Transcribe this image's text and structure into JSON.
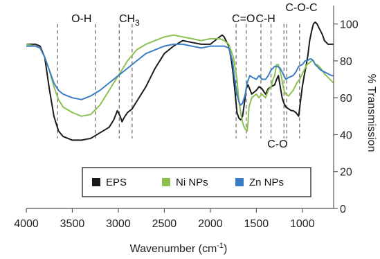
{
  "chart_data": {
    "type": "line",
    "xlabel": {
      "base": "Wavenumber (cm",
      "sup": "-1",
      "close": ")"
    },
    "ylabel": "% Transmission",
    "xlim": [
      4000,
      660
    ],
    "ylim": [
      0,
      110
    ],
    "x_ticks": [
      4000,
      3500,
      3000,
      2500,
      2000,
      1500,
      1000
    ],
    "y_ticks": [
      0,
      20,
      40,
      60,
      80,
      100
    ],
    "grid": false,
    "legend_position": "bottom-center",
    "annotations": [
      {
        "text": "O-H",
        "x": 3400,
        "y": 101
      },
      {
        "text": "CH",
        "sub": "3",
        "x": 2880,
        "y": 101
      },
      {
        "text": "C=O",
        "x": 1640,
        "y": 101
      },
      {
        "text": "C-H",
        "x": 1400,
        "y": 101
      },
      {
        "text": "C-O-C",
        "x": 1010,
        "y": 107
      },
      {
        "text": "C-O",
        "x": 1270,
        "y": 33
      }
    ],
    "vlines": [
      3660,
      3250,
      2990,
      2850,
      1720,
      1610,
      1450,
      1340,
      1200,
      1170,
      1030
    ],
    "series": [
      {
        "name": "EPS",
        "color": "#1a1a1a",
        "points": [
          [
            4000,
            89
          ],
          [
            3900,
            89
          ],
          [
            3850,
            88
          ],
          [
            3800,
            82
          ],
          [
            3750,
            65
          ],
          [
            3700,
            50
          ],
          [
            3650,
            42
          ],
          [
            3600,
            39
          ],
          [
            3500,
            37
          ],
          [
            3400,
            37
          ],
          [
            3300,
            38
          ],
          [
            3200,
            41
          ],
          [
            3100,
            44
          ],
          [
            3050,
            48
          ],
          [
            3010,
            53
          ],
          [
            2980,
            50
          ],
          [
            2960,
            47
          ],
          [
            2940,
            49
          ],
          [
            2900,
            52
          ],
          [
            2850,
            54
          ],
          [
            2800,
            58
          ],
          [
            2700,
            66
          ],
          [
            2600,
            76
          ],
          [
            2500,
            84
          ],
          [
            2400,
            88
          ],
          [
            2300,
            91
          ],
          [
            2200,
            90
          ],
          [
            2100,
            89
          ],
          [
            2000,
            89
          ],
          [
            1950,
            91
          ],
          [
            1900,
            93
          ],
          [
            1870,
            94
          ],
          [
            1850,
            93
          ],
          [
            1800,
            88
          ],
          [
            1770,
            80
          ],
          [
            1750,
            72
          ],
          [
            1730,
            62
          ],
          [
            1710,
            52
          ],
          [
            1690,
            49
          ],
          [
            1670,
            48
          ],
          [
            1650,
            50
          ],
          [
            1630,
            57
          ],
          [
            1610,
            65
          ],
          [
            1590,
            67
          ],
          [
            1550,
            62
          ],
          [
            1500,
            64
          ],
          [
            1470,
            66
          ],
          [
            1440,
            65
          ],
          [
            1400,
            62
          ],
          [
            1370,
            65
          ],
          [
            1340,
            66
          ],
          [
            1300,
            67
          ],
          [
            1280,
            70
          ],
          [
            1260,
            72
          ],
          [
            1240,
            66
          ],
          [
            1220,
            60
          ],
          [
            1200,
            57
          ],
          [
            1180,
            55
          ],
          [
            1150,
            54
          ],
          [
            1120,
            53
          ],
          [
            1100,
            53
          ],
          [
            1070,
            52
          ],
          [
            1040,
            50
          ],
          [
            1020,
            58
          ],
          [
            1000,
            66
          ],
          [
            980,
            72
          ],
          [
            960,
            77
          ],
          [
            940,
            83
          ],
          [
            920,
            91
          ],
          [
            900,
            96
          ],
          [
            880,
            100
          ],
          [
            860,
            101
          ],
          [
            840,
            100
          ],
          [
            820,
            98
          ],
          [
            800,
            96
          ],
          [
            780,
            94
          ],
          [
            760,
            91
          ],
          [
            740,
            90
          ],
          [
            720,
            89
          ],
          [
            700,
            89
          ],
          [
            680,
            89
          ],
          [
            660,
            89
          ]
        ]
      },
      {
        "name": "Ni NPs",
        "color": "#8cc152",
        "points": [
          [
            4000,
            89
          ],
          [
            3900,
            88
          ],
          [
            3850,
            87
          ],
          [
            3800,
            82
          ],
          [
            3750,
            75
          ],
          [
            3700,
            66
          ],
          [
            3650,
            59
          ],
          [
            3600,
            55
          ],
          [
            3500,
            52
          ],
          [
            3400,
            50
          ],
          [
            3300,
            51
          ],
          [
            3200,
            56
          ],
          [
            3100,
            64
          ],
          [
            3000,
            72
          ],
          [
            2950,
            76
          ],
          [
            2900,
            80
          ],
          [
            2800,
            86
          ],
          [
            2700,
            89
          ],
          [
            2600,
            91
          ],
          [
            2500,
            93
          ],
          [
            2400,
            94
          ],
          [
            2300,
            93
          ],
          [
            2200,
            92
          ],
          [
            2100,
            91
          ],
          [
            2000,
            92
          ],
          [
            1900,
            92
          ],
          [
            1850,
            91
          ],
          [
            1800,
            89
          ],
          [
            1750,
            82
          ],
          [
            1710,
            70
          ],
          [
            1690,
            58
          ],
          [
            1660,
            49
          ],
          [
            1640,
            45
          ],
          [
            1620,
            43
          ],
          [
            1600,
            42
          ],
          [
            1590,
            47
          ],
          [
            1580,
            55
          ],
          [
            1550,
            60
          ],
          [
            1500,
            62
          ],
          [
            1470,
            60
          ],
          [
            1440,
            62
          ],
          [
            1400,
            60
          ],
          [
            1370,
            64
          ],
          [
            1340,
            66
          ],
          [
            1320,
            70
          ],
          [
            1300,
            72
          ],
          [
            1280,
            78
          ],
          [
            1260,
            78
          ],
          [
            1240,
            74
          ],
          [
            1230,
            72
          ],
          [
            1200,
            64
          ],
          [
            1180,
            62
          ],
          [
            1150,
            61
          ],
          [
            1100,
            64
          ],
          [
            1080,
            66
          ],
          [
            1060,
            68
          ],
          [
            1030,
            70
          ],
          [
            1000,
            73
          ],
          [
            970,
            76
          ],
          [
            950,
            78
          ],
          [
            920,
            79
          ],
          [
            900,
            80
          ],
          [
            880,
            80
          ],
          [
            860,
            78
          ],
          [
            840,
            78
          ],
          [
            800,
            76
          ],
          [
            760,
            73
          ],
          [
            720,
            71
          ],
          [
            680,
            69
          ],
          [
            660,
            68
          ]
        ]
      },
      {
        "name": "Zn NPs",
        "color": "#3a7dc4",
        "points": [
          [
            4000,
            88
          ],
          [
            3900,
            88
          ],
          [
            3850,
            87
          ],
          [
            3800,
            82
          ],
          [
            3750,
            75
          ],
          [
            3700,
            68
          ],
          [
            3650,
            64
          ],
          [
            3600,
            62
          ],
          [
            3500,
            60
          ],
          [
            3400,
            59
          ],
          [
            3300,
            61
          ],
          [
            3200,
            64
          ],
          [
            3100,
            68
          ],
          [
            3000,
            72
          ],
          [
            2900,
            76
          ],
          [
            2800,
            80
          ],
          [
            2700,
            84
          ],
          [
            2600,
            86
          ],
          [
            2500,
            88
          ],
          [
            2400,
            89
          ],
          [
            2300,
            89
          ],
          [
            2200,
            88
          ],
          [
            2100,
            87
          ],
          [
            2000,
            88
          ],
          [
            1900,
            88
          ],
          [
            1850,
            88
          ],
          [
            1800,
            87
          ],
          [
            1760,
            80
          ],
          [
            1730,
            68
          ],
          [
            1710,
            62
          ],
          [
            1690,
            58
          ],
          [
            1670,
            56
          ],
          [
            1650,
            57
          ],
          [
            1620,
            62
          ],
          [
            1600,
            68
          ],
          [
            1570,
            72
          ],
          [
            1540,
            71
          ],
          [
            1500,
            70
          ],
          [
            1470,
            72
          ],
          [
            1440,
            70
          ],
          [
            1400,
            70
          ],
          [
            1370,
            72
          ],
          [
            1340,
            75
          ],
          [
            1300,
            77
          ],
          [
            1270,
            77
          ],
          [
            1240,
            76
          ],
          [
            1200,
            72
          ],
          [
            1180,
            70
          ],
          [
            1150,
            71
          ],
          [
            1100,
            72
          ],
          [
            1070,
            74
          ],
          [
            1040,
            77
          ],
          [
            1000,
            78
          ],
          [
            970,
            80
          ],
          [
            950,
            80
          ],
          [
            920,
            81
          ],
          [
            900,
            81
          ],
          [
            880,
            80
          ],
          [
            860,
            78
          ],
          [
            840,
            77
          ],
          [
            800,
            75
          ],
          [
            760,
            74
          ],
          [
            720,
            73
          ],
          [
            680,
            72
          ],
          [
            660,
            72
          ]
        ]
      }
    ]
  }
}
